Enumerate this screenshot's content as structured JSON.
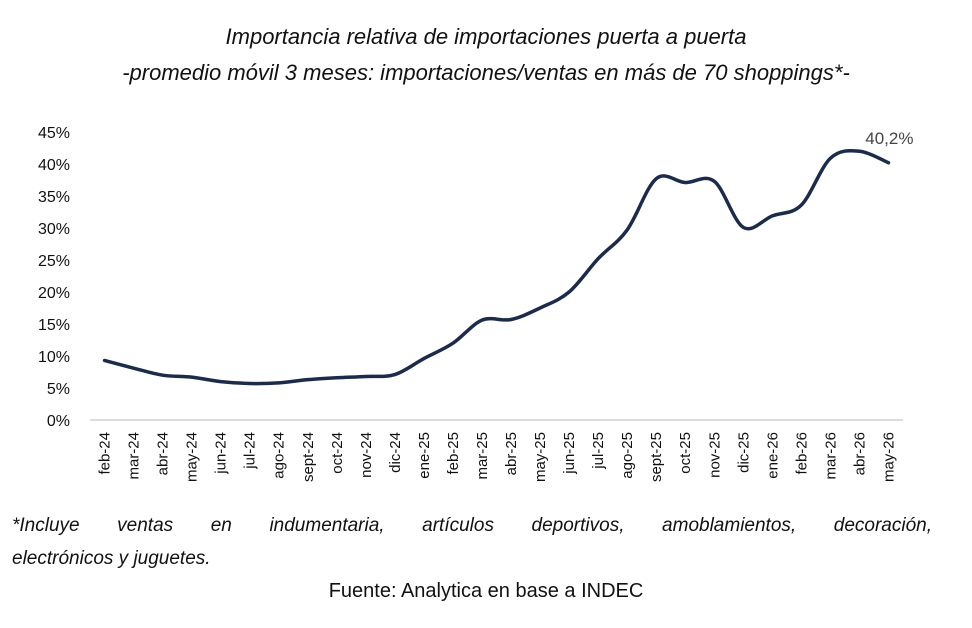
{
  "chart_data": {
    "type": "line",
    "title": "Importancia relativa de importaciones puerta a puerta",
    "subtitle": "-promedio móvil 3 meses: importaciones/ventas en más de 70 shoppings*-",
    "categories": [
      "feb-24",
      "mar-24",
      "abr-24",
      "may-24",
      "jun-24",
      "jul-24",
      "ago-24",
      "sept-24",
      "oct-24",
      "nov-24",
      "dic-24",
      "ene-25",
      "feb-25",
      "mar-25",
      "abr-25",
      "may-25",
      "jun-25",
      "jul-25",
      "ago-25",
      "sept-25",
      "oct-25",
      "nov-25",
      "dic-25",
      "ene-26",
      "feb-26",
      "mar-26",
      "abr-26",
      "may-26"
    ],
    "series": [
      {
        "values": [
          9.3,
          8.1,
          7.0,
          6.7,
          6.0,
          5.7,
          5.8,
          6.3,
          6.6,
          6.8,
          7.1,
          9.6,
          12.0,
          15.6,
          15.7,
          17.5,
          20.0,
          25.2,
          29.7,
          37.7,
          37.1,
          37.3,
          30.1,
          31.9,
          33.6,
          40.9,
          42.0,
          40.2
        ],
        "color": "#1c2b4a"
      }
    ],
    "yticks": [
      "0%",
      "5%",
      "10%",
      "15%",
      "20%",
      "25%",
      "30%",
      "35%",
      "40%",
      "45%"
    ],
    "ylim": [
      0,
      45
    ],
    "annotation": "40,2%",
    "grid": false
  },
  "footnote": {
    "line1": "*Incluye ventas en indumentaria, artículos deportivos, amoblamientos, decoración,",
    "line2": "electrónicos y juguetes."
  },
  "source": "Fuente: Analytica en base a INDEC"
}
